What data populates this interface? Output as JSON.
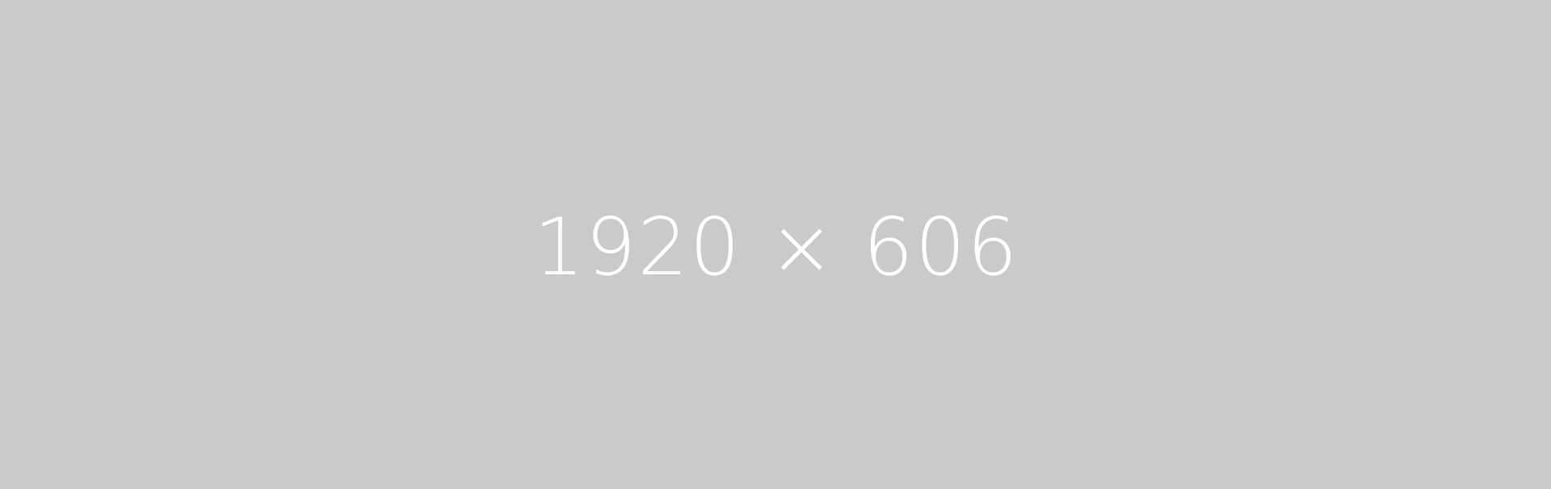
{
  "placeholder": {
    "background_color": "#cacaca",
    "text_color": "#ffffff",
    "label": "1920 × 606"
  }
}
